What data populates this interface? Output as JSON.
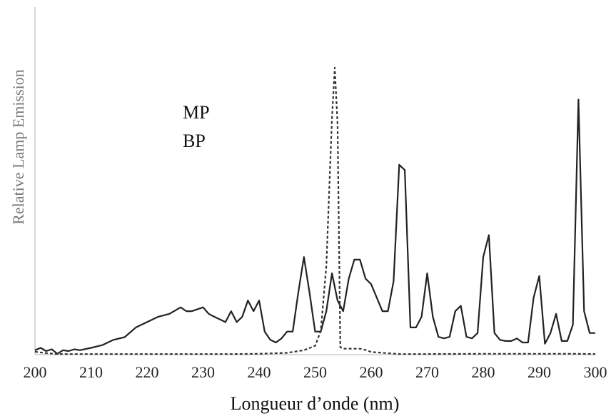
{
  "chart_data": {
    "type": "line",
    "xlabel": "Longueur d’onde (nm)",
    "ylabel": "Relative Lamp Emission",
    "xlim": [
      200,
      300
    ],
    "ylim": [
      0,
      100
    ],
    "x_ticks": [
      200,
      210,
      220,
      230,
      240,
      250,
      260,
      270,
      280,
      290,
      300
    ],
    "grid": false,
    "legend": [
      "MP",
      "BP"
    ],
    "colors": {
      "MP": "#222222",
      "BP": "#333333",
      "axis": "#cccccc"
    },
    "series": [
      {
        "name": "MP",
        "style": "solid",
        "x": [
          200,
          201,
          202,
          203,
          204,
          205,
          206,
          207,
          208,
          210,
          212,
          214,
          216,
          218,
          220,
          222,
          224,
          226,
          227,
          228,
          230,
          231,
          232,
          234,
          235,
          236,
          237,
          238,
          239,
          240,
          241,
          242,
          243,
          244,
          245,
          246,
          247,
          248,
          249,
          250,
          251,
          252,
          253,
          254,
          255,
          256,
          257,
          258,
          259,
          260,
          261,
          262,
          263,
          264,
          265,
          266,
          267,
          268,
          269,
          270,
          271,
          272,
          273,
          274,
          275,
          276,
          277,
          278,
          279,
          280,
          281,
          282,
          283,
          284,
          285,
          286,
          287,
          288,
          289,
          290,
          291,
          292,
          293,
          294,
          295,
          296,
          297,
          298,
          299,
          300
        ],
        "y": [
          1.5,
          2.3,
          1.2,
          1.8,
          0.3,
          1.5,
          1.2,
          1.8,
          1.5,
          2.3,
          3.2,
          5.0,
          5.9,
          9.2,
          11.0,
          12.8,
          13.8,
          16.0,
          14.7,
          14.7,
          16.0,
          13.8,
          12.8,
          11.0,
          14.7,
          11.0,
          12.8,
          18.3,
          14.7,
          18.3,
          7.8,
          5.0,
          4.1,
          5.5,
          7.8,
          7.8,
          21.0,
          33.0,
          21.0,
          7.8,
          7.8,
          14.7,
          27.5,
          18.3,
          14.7,
          25.7,
          32.1,
          32.1,
          25.7,
          23.8,
          19.3,
          14.7,
          14.7,
          24.8,
          64.2,
          62.4,
          9.2,
          9.2,
          12.8,
          27.5,
          12.8,
          6.0,
          5.5,
          6.0,
          14.7,
          16.5,
          6.0,
          5.5,
          7.3,
          33.0,
          40.4,
          7.3,
          5.0,
          4.6,
          4.6,
          5.5,
          4.1,
          4.1,
          19.3,
          26.6,
          3.7,
          7.3,
          13.8,
          4.6,
          4.6,
          10.1,
          86.2,
          14.7,
          7.3,
          7.3
        ]
      },
      {
        "name": "BP",
        "style": "dashed",
        "x": [
          200,
          202,
          204,
          206,
          208,
          210,
          215,
          220,
          225,
          230,
          235,
          240,
          245,
          248,
          250,
          251,
          252,
          253,
          253.5,
          254,
          254.5,
          255,
          256,
          257,
          258,
          259,
          260,
          265,
          270,
          280,
          290,
          296,
          300
        ],
        "y": [
          1.0,
          0.5,
          0.2,
          0.2,
          0.2,
          0.2,
          0.2,
          0.2,
          0.2,
          0.2,
          0.2,
          0.3,
          0.6,
          1.5,
          3.0,
          8.0,
          30.0,
          80.0,
          97.0,
          78.0,
          2.5,
          2.0,
          2.0,
          2.0,
          2.0,
          1.6,
          0.9,
          0.2,
          0.2,
          0.3,
          0.3,
          0.3,
          0.2
        ]
      }
    ]
  }
}
